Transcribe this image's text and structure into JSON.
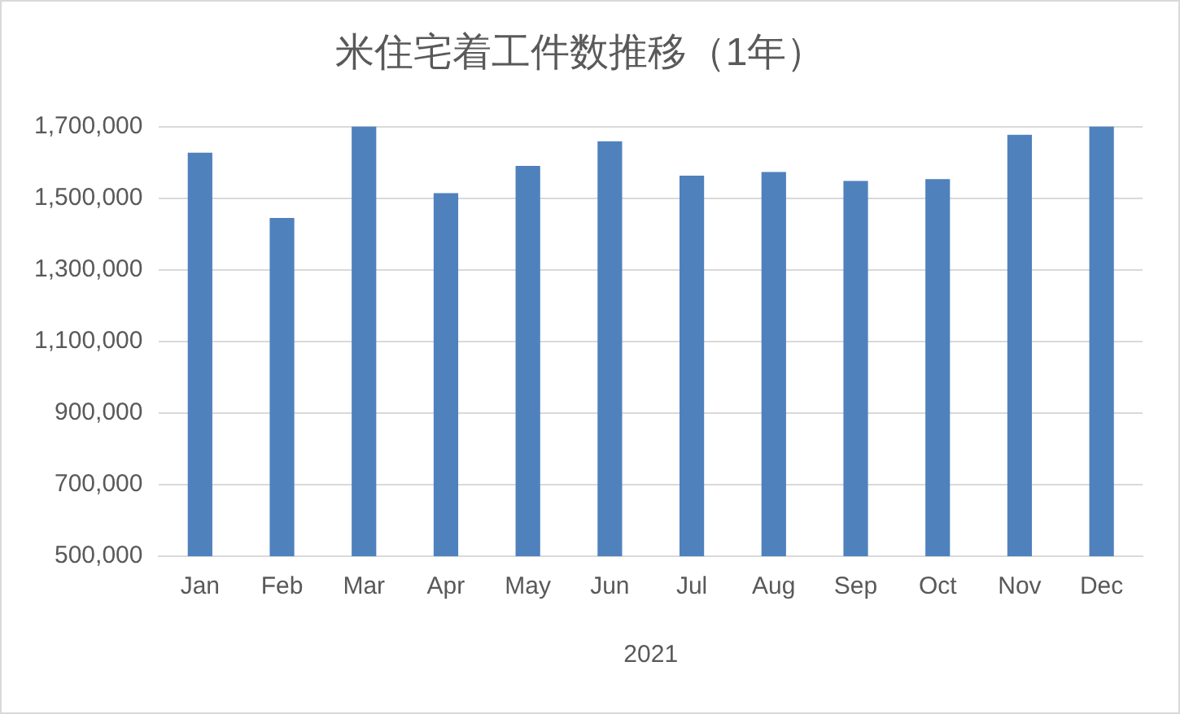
{
  "chart_data": {
    "type": "bar",
    "title": "米住宅着工件数推移（1年）",
    "xlabel": "2021",
    "categories": [
      "Jan",
      "Feb",
      "Mar",
      "Apr",
      "May",
      "Jun",
      "Jul",
      "Aug",
      "Sep",
      "Oct",
      "Nov",
      "Dec"
    ],
    "values": [
      1627000,
      1445000,
      1700000,
      1514000,
      1590000,
      1659000,
      1563000,
      1573000,
      1548000,
      1553000,
      1677000,
      1700000
    ],
    "color": "#4f81bd",
    "ylim": [
      500000,
      1700000
    ],
    "yticks": [
      {
        "value": 500000,
        "label": "500,000"
      },
      {
        "value": 700000,
        "label": "700,000"
      },
      {
        "value": 900000,
        "label": "900,000"
      },
      {
        "value": 1100000,
        "label": "1,100,000"
      },
      {
        "value": 1300000,
        "label": "1,300,000"
      },
      {
        "value": 1500000,
        "label": "1,500,000"
      },
      {
        "value": 1700000,
        "label": "1,700,000"
      }
    ],
    "grid": "y",
    "legend": false
  }
}
